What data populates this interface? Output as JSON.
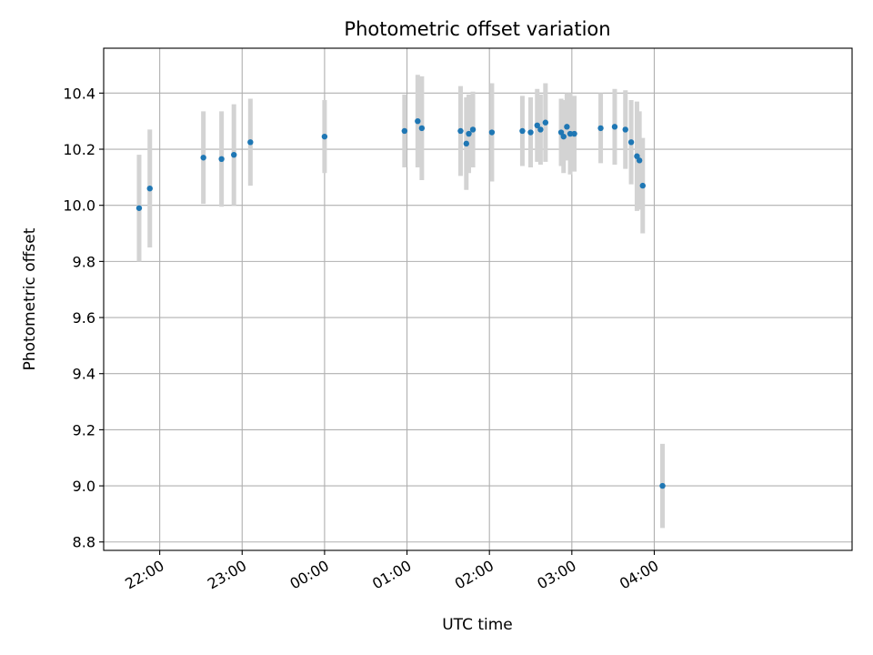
{
  "chart_data": {
    "type": "scatter",
    "title": "Photometric offset variation",
    "xlabel": "UTC time",
    "ylabel": "Photometric offset",
    "xlim": [
      -2.68,
      6.4
    ],
    "ylim": [
      8.77,
      10.56
    ],
    "x_ticks": [
      {
        "value": -2.0,
        "label": "22:00"
      },
      {
        "value": -1.0,
        "label": "23:00"
      },
      {
        "value": 0.0,
        "label": "00:00"
      },
      {
        "value": 1.0,
        "label": "01:00"
      },
      {
        "value": 2.0,
        "label": "02:00"
      },
      {
        "value": 3.0,
        "label": "03:00"
      },
      {
        "value": 4.0,
        "label": "04:00"
      }
    ],
    "y_ticks": [
      8.8,
      9.0,
      9.2,
      9.4,
      9.6,
      9.8,
      10.0,
      10.2,
      10.4
    ],
    "grid": true,
    "marker_color": "#1f77b4",
    "errorbar_color": "#d3d3d3",
    "points": [
      {
        "x": -2.25,
        "y": 9.99,
        "err": 0.19
      },
      {
        "x": -2.12,
        "y": 10.06,
        "err": 0.21
      },
      {
        "x": -1.47,
        "y": 10.17,
        "err": 0.165
      },
      {
        "x": -1.25,
        "y": 10.165,
        "err": 0.17
      },
      {
        "x": -1.1,
        "y": 10.18,
        "err": 0.18
      },
      {
        "x": -0.9,
        "y": 10.225,
        "err": 0.155
      },
      {
        "x": 0.0,
        "y": 10.245,
        "err": 0.13
      },
      {
        "x": 0.97,
        "y": 10.265,
        "err": 0.13
      },
      {
        "x": 1.13,
        "y": 10.3,
        "err": 0.165
      },
      {
        "x": 1.18,
        "y": 10.275,
        "err": 0.185
      },
      {
        "x": 1.65,
        "y": 10.265,
        "err": 0.16
      },
      {
        "x": 1.72,
        "y": 10.22,
        "err": 0.165
      },
      {
        "x": 1.75,
        "y": 10.255,
        "err": 0.14
      },
      {
        "x": 1.8,
        "y": 10.27,
        "err": 0.135
      },
      {
        "x": 2.03,
        "y": 10.26,
        "err": 0.175
      },
      {
        "x": 2.4,
        "y": 10.265,
        "err": 0.125
      },
      {
        "x": 2.5,
        "y": 10.26,
        "err": 0.125
      },
      {
        "x": 2.58,
        "y": 10.285,
        "err": 0.13
      },
      {
        "x": 2.62,
        "y": 10.27,
        "err": 0.125
      },
      {
        "x": 2.68,
        "y": 10.295,
        "err": 0.14
      },
      {
        "x": 2.87,
        "y": 10.26,
        "err": 0.12
      },
      {
        "x": 2.9,
        "y": 10.245,
        "err": 0.13
      },
      {
        "x": 2.94,
        "y": 10.28,
        "err": 0.12
      },
      {
        "x": 2.98,
        "y": 10.255,
        "err": 0.145
      },
      {
        "x": 3.03,
        "y": 10.255,
        "err": 0.135
      },
      {
        "x": 3.35,
        "y": 10.275,
        "err": 0.125
      },
      {
        "x": 3.52,
        "y": 10.28,
        "err": 0.135
      },
      {
        "x": 3.65,
        "y": 10.27,
        "err": 0.14
      },
      {
        "x": 3.72,
        "y": 10.225,
        "err": 0.15
      },
      {
        "x": 3.79,
        "y": 10.175,
        "err": 0.195
      },
      {
        "x": 3.82,
        "y": 10.16,
        "err": 0.175
      },
      {
        "x": 3.86,
        "y": 10.07,
        "err": 0.17
      },
      {
        "x": 4.1,
        "y": 9.0,
        "err": 0.15
      }
    ]
  }
}
